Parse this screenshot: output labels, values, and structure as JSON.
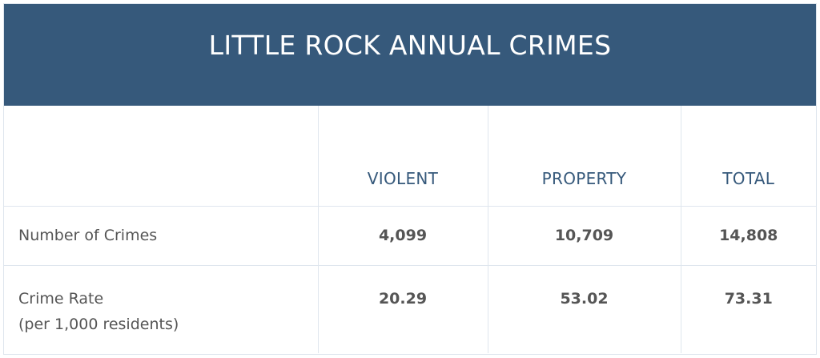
{
  "title": "LITTLE ROCK ANNUAL CRIMES",
  "colors": {
    "header_bg": "#36597b",
    "header_text": "#ffffff",
    "column_header_text": "#36597b",
    "body_text": "#555555",
    "grid_lines": "#dfe6ee"
  },
  "columns": [
    "",
    "VIOLENT",
    "PROPERTY",
    "TOTAL"
  ],
  "rows": [
    {
      "label": "Number of Crimes",
      "sublabel": "",
      "values": [
        "4,099",
        "10,709",
        "14,808"
      ]
    },
    {
      "label": "Crime Rate",
      "sublabel": "(per 1,000 residents)",
      "values": [
        "20.29",
        "53.02",
        "73.31"
      ]
    }
  ]
}
